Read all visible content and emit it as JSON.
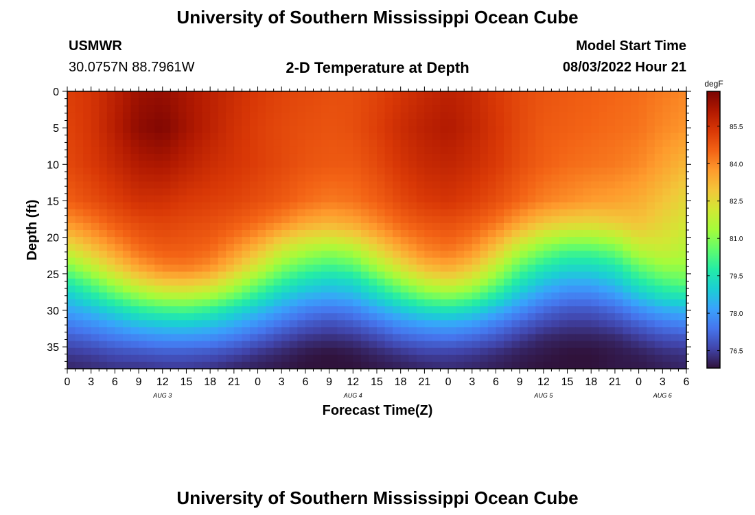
{
  "header": {
    "title": "University of Southern Mississippi Ocean Cube",
    "station": "USMWR",
    "coords": "30.0757N  88.7961W",
    "chart_title": "2-D Temperature at Depth",
    "model_label": "Model Start Time",
    "model_time": "08/03/2022 Hour 21"
  },
  "footer": {
    "title": "University of Southern Mississippi Ocean Cube"
  },
  "colors": {
    "colormap": [
      "#30123b",
      "#4145ab",
      "#4675ed",
      "#39a2fc",
      "#1bcfd4",
      "#24eca6",
      "#61fc6c",
      "#a4fc3b",
      "#d1e834",
      "#f3c63a",
      "#fe9b2d",
      "#f36315",
      "#d93806",
      "#b11901",
      "#7a0402"
    ]
  },
  "chart_data": {
    "type": "heatmap",
    "title": "2-D Temperature at Depth",
    "xlabel": "Forecast Time(Z)",
    "ylabel": "Depth (ft)",
    "x_ticks": [
      "0",
      "3",
      "6",
      "9",
      "12",
      "15",
      "18",
      "21",
      "0",
      "3",
      "6",
      "9",
      "12",
      "15",
      "18",
      "21",
      "0",
      "3",
      "6",
      "9",
      "12",
      "15",
      "18",
      "21",
      "0",
      "3",
      "6"
    ],
    "x_range_hours": [
      0,
      78
    ],
    "date_labels": [
      {
        "label": "AUG 3",
        "hour": 12
      },
      {
        "label": "AUG 4",
        "hour": 36
      },
      {
        "label": "AUG 5",
        "hour": 60
      },
      {
        "label": "AUG 6",
        "hour": 75
      }
    ],
    "y_ticks": [
      0,
      5,
      10,
      15,
      20,
      25,
      30,
      35
    ],
    "y_range_ft": [
      0,
      38
    ],
    "colorbar": {
      "unit": "degF",
      "ticks": [
        "85.5",
        "84.0",
        "82.5",
        "81.0",
        "79.5",
        "78.0",
        "76.5"
      ],
      "range": [
        75.8,
        86.9
      ]
    },
    "grid_samples": {
      "hours": [
        0,
        3,
        6,
        9,
        12,
        15,
        18,
        21,
        24,
        27,
        30,
        33,
        36,
        39,
        42,
        45,
        48,
        51,
        54,
        57,
        60,
        63,
        66,
        69,
        72,
        75,
        78
      ],
      "depths_ft": [
        0,
        5,
        10,
        15,
        18,
        20,
        22,
        24,
        26,
        28,
        30,
        32,
        34,
        36,
        38
      ],
      "note": "temperature (degF) at each depth row / hour column",
      "values": [
        [
          85.2,
          85.4,
          85.9,
          86.4,
          86.5,
          86.2,
          85.9,
          85.6,
          85.3,
          85.1,
          85.0,
          84.9,
          84.9,
          85.1,
          85.4,
          85.7,
          85.9,
          85.7,
          85.3,
          85.0,
          84.8,
          84.7,
          84.6,
          84.5,
          84.4,
          84.2,
          84.0
        ],
        [
          85.1,
          85.4,
          86.0,
          86.6,
          86.8,
          86.3,
          85.9,
          85.5,
          85.2,
          85.0,
          84.9,
          84.8,
          84.9,
          85.2,
          85.6,
          85.9,
          86.1,
          85.8,
          85.4,
          85.0,
          84.7,
          84.6,
          84.5,
          84.4,
          84.3,
          84.0,
          83.8
        ],
        [
          85.0,
          85.3,
          85.7,
          86.1,
          86.2,
          85.9,
          85.6,
          85.4,
          85.2,
          85.0,
          84.8,
          84.7,
          84.7,
          85.0,
          85.4,
          85.7,
          85.8,
          85.6,
          85.3,
          84.9,
          84.6,
          84.4,
          84.3,
          84.2,
          84.0,
          83.6,
          83.2
        ],
        [
          84.6,
          84.9,
          85.2,
          85.5,
          85.5,
          85.3,
          85.2,
          85.1,
          84.9,
          84.7,
          84.4,
          84.2,
          84.3,
          84.6,
          85.0,
          85.3,
          85.4,
          85.2,
          84.9,
          84.5,
          84.1,
          83.9,
          83.7,
          83.6,
          83.4,
          83.0,
          82.5
        ],
        [
          83.8,
          84.2,
          84.7,
          85.0,
          85.1,
          85.0,
          84.9,
          84.7,
          84.4,
          84.0,
          83.5,
          83.3,
          83.5,
          84.0,
          84.5,
          84.8,
          84.9,
          84.7,
          84.3,
          83.6,
          83.0,
          82.7,
          82.6,
          82.8,
          83.0,
          82.6,
          82.2
        ],
        [
          83.0,
          83.6,
          84.2,
          84.7,
          84.9,
          84.8,
          84.7,
          84.3,
          83.8,
          83.0,
          82.5,
          82.3,
          82.6,
          83.3,
          84.0,
          84.4,
          84.6,
          84.3,
          83.6,
          82.6,
          81.8,
          81.4,
          81.4,
          81.7,
          82.4,
          82.3,
          81.9
        ],
        [
          82.0,
          82.8,
          83.6,
          84.3,
          84.6,
          84.6,
          84.4,
          83.8,
          83.0,
          82.0,
          81.4,
          81.1,
          81.4,
          82.4,
          83.3,
          84.0,
          84.2,
          83.8,
          82.8,
          81.5,
          80.7,
          80.2,
          80.2,
          80.6,
          81.6,
          81.9,
          81.6
        ],
        [
          80.9,
          81.8,
          82.8,
          83.6,
          84.1,
          84.2,
          83.9,
          83.1,
          82.1,
          81.0,
          80.4,
          80.1,
          80.4,
          81.4,
          82.4,
          83.2,
          83.5,
          83.0,
          81.8,
          80.5,
          79.7,
          79.3,
          79.3,
          79.6,
          80.6,
          81.2,
          81.2
        ],
        [
          79.8,
          80.6,
          81.6,
          82.5,
          83.0,
          83.1,
          82.8,
          81.9,
          80.9,
          80.0,
          79.4,
          79.1,
          79.3,
          80.2,
          81.2,
          82.0,
          82.4,
          81.9,
          80.8,
          79.6,
          78.8,
          78.4,
          78.4,
          78.8,
          79.7,
          80.3,
          80.6
        ],
        [
          78.9,
          79.6,
          80.4,
          81.1,
          81.6,
          81.7,
          81.4,
          80.7,
          79.8,
          79.0,
          78.5,
          78.3,
          78.5,
          79.2,
          80.0,
          80.7,
          81.0,
          80.6,
          79.7,
          78.7,
          78.0,
          77.6,
          77.6,
          78.0,
          78.8,
          79.4,
          79.6
        ],
        [
          78.2,
          78.6,
          79.2,
          79.8,
          80.1,
          80.2,
          79.9,
          79.3,
          78.7,
          78.1,
          77.6,
          77.4,
          77.6,
          78.2,
          78.8,
          79.3,
          79.5,
          79.2,
          78.5,
          77.8,
          77.2,
          76.9,
          76.9,
          77.2,
          77.8,
          78.3,
          78.5
        ],
        [
          77.5,
          77.8,
          78.2,
          78.6,
          78.8,
          78.9,
          78.7,
          78.3,
          77.8,
          77.3,
          76.9,
          76.7,
          76.9,
          77.3,
          77.8,
          78.1,
          78.2,
          78.0,
          77.5,
          77.0,
          76.6,
          76.4,
          76.4,
          76.6,
          77.0,
          77.4,
          77.6
        ],
        [
          76.9,
          77.1,
          77.4,
          77.6,
          77.8,
          77.8,
          77.7,
          77.4,
          77.0,
          76.6,
          76.3,
          76.2,
          76.3,
          76.6,
          77.0,
          77.2,
          77.3,
          77.1,
          76.8,
          76.4,
          76.1,
          76.0,
          76.0,
          76.1,
          76.4,
          76.7,
          76.8
        ],
        [
          76.4,
          76.5,
          76.7,
          76.8,
          76.9,
          76.9,
          76.8,
          76.6,
          76.3,
          76.1,
          75.9,
          75.8,
          75.9,
          76.1,
          76.3,
          76.5,
          76.5,
          76.4,
          76.2,
          76.0,
          75.9,
          75.8,
          75.8,
          75.9,
          76.0,
          76.2,
          76.3
        ],
        [
          76.1,
          76.2,
          76.3,
          76.3,
          76.4,
          76.4,
          76.3,
          76.1,
          76.0,
          75.9,
          75.8,
          75.8,
          75.8,
          75.9,
          76.0,
          76.1,
          76.2,
          76.1,
          76.0,
          75.9,
          75.8,
          75.8,
          75.8,
          75.9,
          75.9,
          76.0,
          76.1
        ]
      ]
    }
  }
}
